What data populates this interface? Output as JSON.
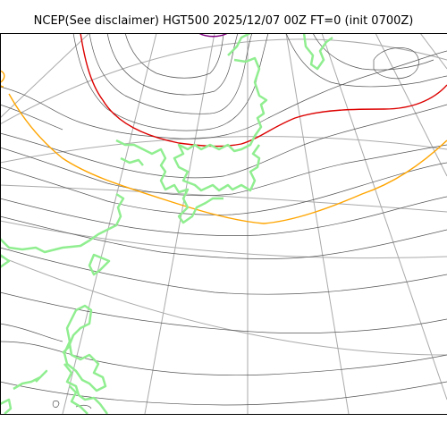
{
  "map": {
    "title": "NCEP(See disclaimer) HGT500 2025/12/07 00Z FT=0 (init 0700Z)",
    "colors": {
      "contour": "#555555",
      "graticule": "#aaaaaa",
      "coastline": "#90ee90",
      "contour_highlight_red": "#dd0000",
      "contour_highlight_orange": "#ffa500",
      "contour_highlight_purple": "#800080",
      "background": "#ffffff"
    }
  }
}
